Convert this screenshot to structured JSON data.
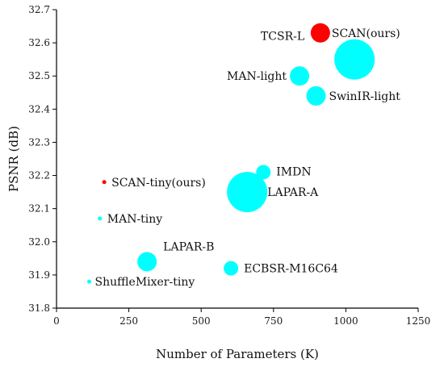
{
  "chart_data": {
    "type": "scatter",
    "title": "",
    "xlabel": "Number of Parameters (K)",
    "ylabel": "PSNR (dB)",
    "xlim": [
      0,
      1250
    ],
    "ylim": [
      31.8,
      32.7
    ],
    "xticks": [
      "0",
      "250",
      "500",
      "750",
      "1000",
      "1250"
    ],
    "yticks": [
      "31.8",
      "31.9",
      "32.0",
      "32.1",
      "32.2",
      "32.3",
      "32.4",
      "32.5",
      "32.6",
      "32.7"
    ],
    "grid": false,
    "legend": "none",
    "points": [
      {
        "label": "SCAN(ours)",
        "x": 912,
        "y": 32.63,
        "color": "#ff0000",
        "size": "medium"
      },
      {
        "label": "TCSR-L",
        "x": 1030,
        "y": 32.55,
        "color": "#00ffff",
        "size": "large"
      },
      {
        "label": "MAN-light",
        "x": 840,
        "y": 32.5,
        "color": "#00ffff",
        "size": "medium"
      },
      {
        "label": "SwinIR-light",
        "x": 897,
        "y": 32.44,
        "color": "#00ffff",
        "size": "medium"
      },
      {
        "label": "IMDN",
        "x": 715,
        "y": 32.21,
        "color": "#00ffff",
        "size": "small"
      },
      {
        "label": "SCAN-tiny(ours)",
        "x": 165,
        "y": 32.18,
        "color": "#ff0000",
        "size": "tiny"
      },
      {
        "label": "LAPAR-A",
        "x": 659,
        "y": 32.15,
        "color": "#00ffff",
        "size": "large"
      },
      {
        "label": "MAN-tiny",
        "x": 150,
        "y": 32.07,
        "color": "#00ffff",
        "size": "tiny"
      },
      {
        "label": "LAPAR-B",
        "x": 313,
        "y": 31.94,
        "color": "#00ffff",
        "size": "medium"
      },
      {
        "label": "ECBSR-M16C64",
        "x": 603,
        "y": 31.92,
        "color": "#00ffff",
        "size": "small"
      },
      {
        "label": "ShuffleMixer-tiny",
        "x": 113,
        "y": 31.88,
        "color": "#00ffff",
        "size": "tiny"
      }
    ]
  }
}
